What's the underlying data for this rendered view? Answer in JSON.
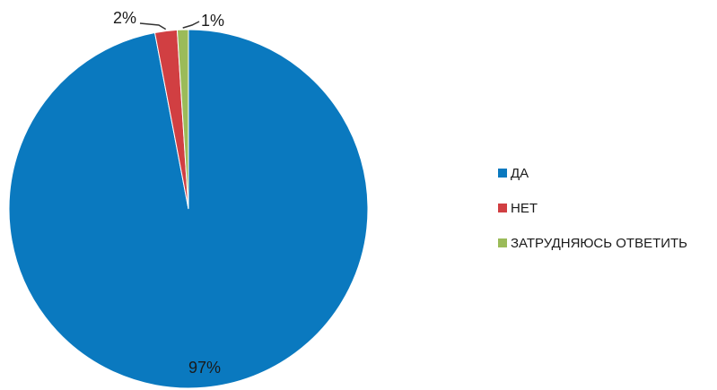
{
  "chart_data": {
    "type": "pie",
    "categories": [
      "ДА",
      "НЕТ",
      "ЗАТРУДНЯЮСЬ ОТВЕТИТЬ"
    ],
    "values": [
      97,
      2,
      1
    ],
    "labels": [
      "97%",
      "2%",
      "1%"
    ],
    "colors": [
      "#0a79bf",
      "#d13f42",
      "#9bbb59"
    ],
    "legend": "right"
  }
}
